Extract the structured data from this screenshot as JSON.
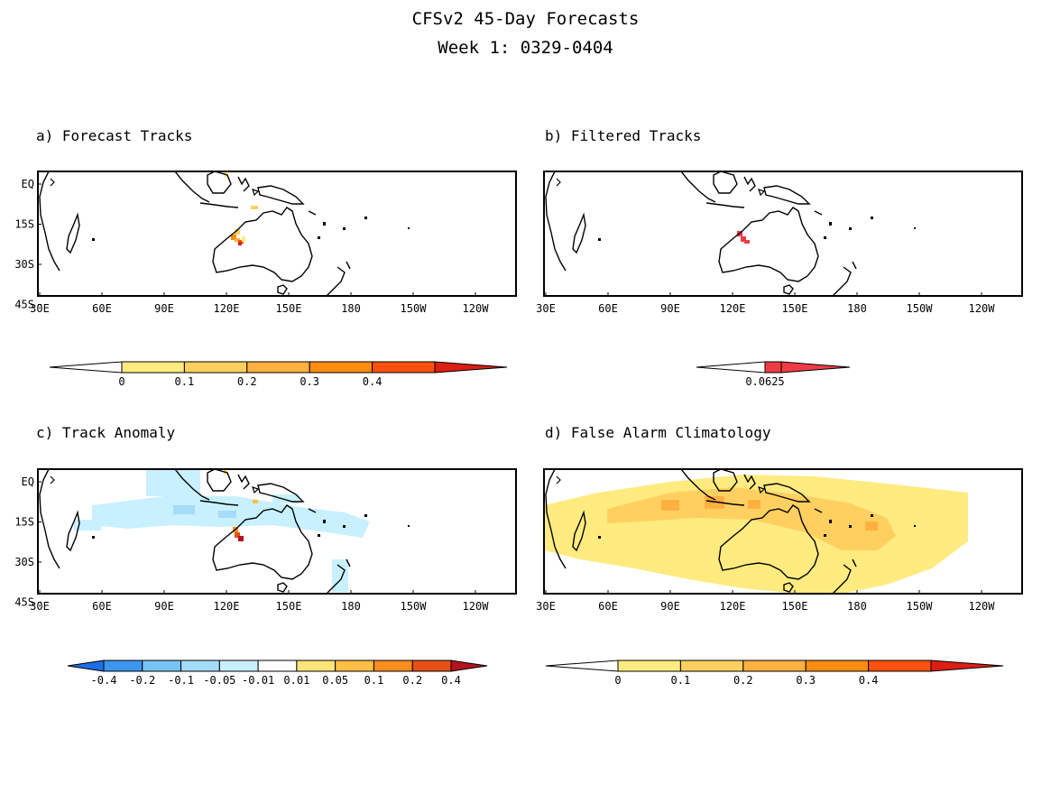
{
  "title": {
    "line1": "CFSv2 45-Day Forecasts",
    "line2": "Week 1: 0329-0404"
  },
  "panels": [
    {
      "title": "a) Forecast Tracks",
      "colorbar": {
        "labels": [
          "0",
          "0.1",
          "0.2",
          "0.3",
          "0.4"
        ],
        "colors": [
          "#ffeb80",
          "#ffd060",
          "#ffb040",
          "#ff8c10",
          "#ff5010",
          "#dc1e14"
        ]
      }
    },
    {
      "title": "b) Filtered Tracks",
      "colorbar": {
        "labels": [
          "0.0625"
        ],
        "colors": [
          "#f03c46"
        ]
      }
    },
    {
      "title": "c) Track Anomaly",
      "colorbar": {
        "labels": [
          "-0.4",
          "-0.2",
          "-0.1",
          "-0.05",
          "-0.01",
          "0.01",
          "0.05",
          "0.1",
          "0.2",
          "0.4"
        ],
        "colors": [
          "#1e6ee6",
          "#3c96f0",
          "#78c3f5",
          "#a5dcfa",
          "#c8f0ff",
          "#ffffff",
          "#ffe478",
          "#ffbe46",
          "#ff8c1e",
          "#e65014",
          "#b4141e"
        ]
      }
    },
    {
      "title": "d) False Alarm Climatology",
      "colorbar": {
        "labels": [
          "0",
          "0.1",
          "0.2",
          "0.3",
          "0.4"
        ],
        "colors": [
          "#ffeb80",
          "#ffd060",
          "#ffb040",
          "#ff8c10",
          "#ff5010",
          "#dc1e14"
        ]
      }
    }
  ],
  "axes": {
    "x_ticks": [
      "30E",
      "60E",
      "90E",
      "120E",
      "150E",
      "180",
      "150W",
      "120W"
    ],
    "y_ticks": [
      "EQ",
      "15S",
      "30S",
      "45S"
    ]
  }
}
